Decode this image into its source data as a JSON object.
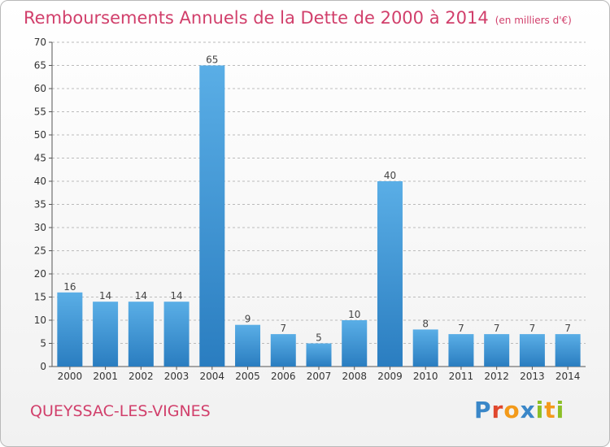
{
  "chart_data": {
    "type": "bar",
    "title": "Remboursements Annuels de la Dette de 2000 à 2014",
    "unit_note": "(en milliers d'€)",
    "categories": [
      "2000",
      "2001",
      "2002",
      "2003",
      "2004",
      "2005",
      "2006",
      "2007",
      "2008",
      "2009",
      "2010",
      "2011",
      "2012",
      "2013",
      "2014"
    ],
    "values": [
      16,
      14,
      14,
      14,
      65,
      9,
      7,
      5,
      10,
      40,
      8,
      7,
      7,
      7,
      7
    ],
    "ylim": [
      0,
      70
    ],
    "yticks": [
      0,
      5,
      10,
      15,
      20,
      25,
      30,
      35,
      40,
      45,
      50,
      55,
      60,
      65,
      70
    ],
    "grid": true,
    "bar_color_top": "#5aaee6",
    "bar_color_bottom": "#2a7dc0",
    "label_color": "#444444"
  },
  "footer": {
    "commune": "QUEYSSAC-LES-VIGNES",
    "logo_text": "Proxiti",
    "logo_colors": [
      "#3a87c8",
      "#e0472d",
      "#f39a1a",
      "#3a87c8",
      "#8cbf26",
      "#f39a1a",
      "#8cbf26"
    ]
  },
  "theme": {
    "title_color": "#d13f6b",
    "grid_color": "#bbbbbb"
  }
}
